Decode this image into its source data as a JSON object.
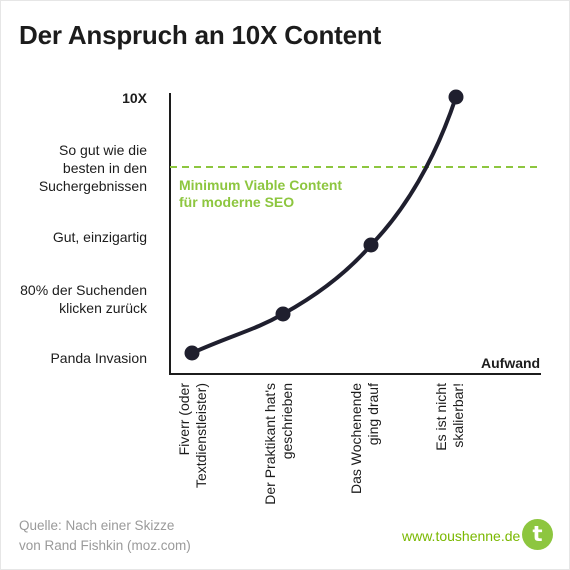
{
  "title": "Der Anspruch an 10X Content",
  "chart_data": {
    "type": "line",
    "title": "Der Anspruch an 10X Content",
    "xlabel": "Aufwand",
    "ylabel": "",
    "x_categories": [
      "Fiverr (oder\nTextdienstleister)",
      "Der Praktikant hat's\ngeschrieben",
      "Das Wochenende\nging drauf",
      "Es ist nicht\nskalierbar!"
    ],
    "y_categories": [
      "Panda Invasion",
      "80% der Suchenden\nklicken zurück",
      "Gut, einzigartig",
      "So gut wie die\nbesten in den\nSuchergebnissen",
      "10X"
    ],
    "points": [
      {
        "x": "Fiverr (oder Textdienstleister)",
        "y": "Panda Invasion"
      },
      {
        "x": "Der Praktikant hat's geschrieben",
        "y": "80% der Suchenden klicken zurück"
      },
      {
        "x": "Das Wochenende ging drauf",
        "y": "Gut, einzigartig"
      },
      {
        "x": "Es ist nicht skalierbar!",
        "y": "10X"
      }
    ],
    "threshold": {
      "label": "Minimum Viable Content\nfür moderne SEO",
      "level": "So gut wie die besten in den Suchergebnissen",
      "style": "dashed",
      "color": "#8dc63f"
    },
    "grid": false,
    "line_color": "#1f1f2e"
  },
  "source": "Quelle: Nach einer Skizze\nvon Rand Fishkin (moz.com)",
  "website": "www.toushenne.de",
  "logo_letter": "t",
  "colors": {
    "accent": "#8dc63f",
    "curve": "#1f1f2e",
    "text": "#1c1c1c",
    "muted": "#9a9a9a"
  }
}
